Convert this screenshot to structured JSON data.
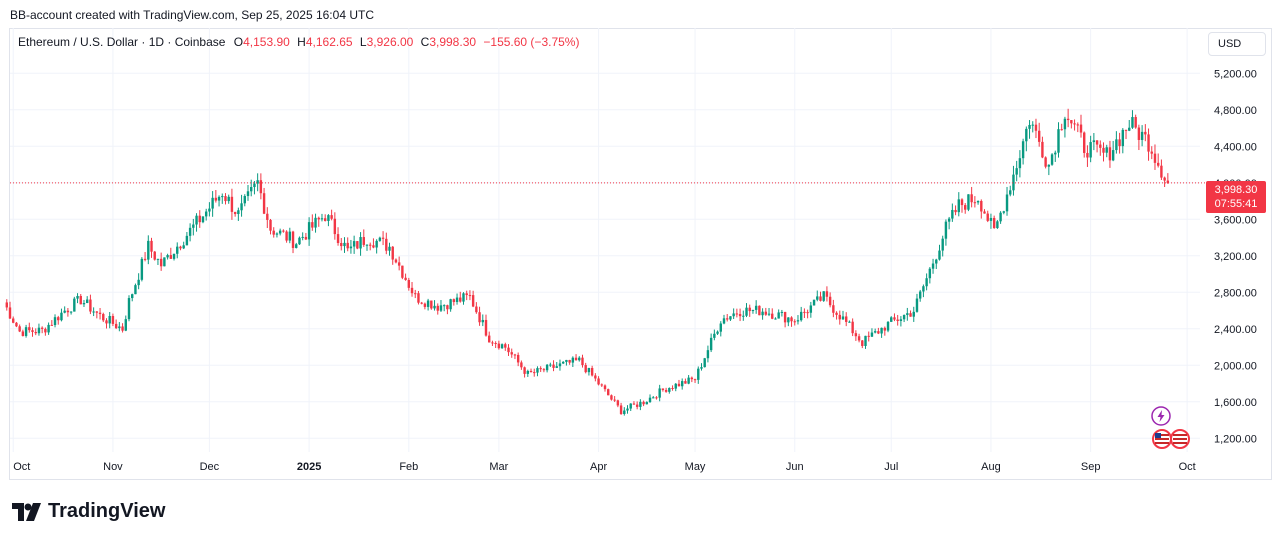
{
  "header": {
    "caption": "BB-account created with TradingView.com, Sep 25, 2025 16:04 UTC"
  },
  "legend": {
    "symbol": "Ethereum / U.S. Dollar · 1D · Coinbase",
    "o_label": "O",
    "o_value": "4,153.90",
    "h_label": "H",
    "h_value": "4,162.65",
    "l_label": "L",
    "l_value": "3,926.00",
    "c_label": "C",
    "c_value": "3,998.30",
    "change": "−155.60 (−3.75%)"
  },
  "currency_button": "USD",
  "last_price": {
    "price": "3,998.30",
    "countdown": "07:55:41"
  },
  "brand": "TradingView",
  "colors": {
    "up": "#089981",
    "down": "#f23645",
    "grid": "#f0f3fa",
    "text": "#131722"
  },
  "icons": [
    "lightning-icon",
    "us-flag-icon"
  ],
  "chart_data": {
    "type": "candlestick",
    "y_axis": {
      "position": "right",
      "ticks": [
        1200,
        1600,
        2000,
        2400,
        2800,
        3200,
        3600,
        4000,
        4400,
        4800,
        5200
      ],
      "tick_labels": [
        "1,200.00",
        "1,600.00",
        "2,000.00",
        "2,400.00",
        "2,800.00",
        "3,200.00",
        "3,600.00",
        "4,000.00",
        "4,400.00",
        "4,800.00",
        "5,200.00"
      ],
      "range": [
        1050,
        5400
      ]
    },
    "x_axis": {
      "range": [
        "2024-09-30",
        "2025-10-05"
      ],
      "ticks": [
        {
          "date": "2024-10-01",
          "label": "Oct"
        },
        {
          "date": "2024-11-01",
          "label": "Nov"
        },
        {
          "date": "2024-12-01",
          "label": "Dec"
        },
        {
          "date": "2025-01-01",
          "label": "2025"
        },
        {
          "date": "2025-02-01",
          "label": "Feb"
        },
        {
          "date": "2025-03-01",
          "label": "Mar"
        },
        {
          "date": "2025-04-01",
          "label": "Apr"
        },
        {
          "date": "2025-05-01",
          "label": "May"
        },
        {
          "date": "2025-06-01",
          "label": "Jun"
        },
        {
          "date": "2025-07-01",
          "label": "Jul"
        },
        {
          "date": "2025-08-01",
          "label": "Aug"
        },
        {
          "date": "2025-09-01",
          "label": "Sep"
        },
        {
          "date": "2025-10-01",
          "label": "Oct"
        }
      ]
    },
    "last_price_line": 3998.3,
    "grid": true,
    "closes": [
      {
        "date": "2024-09-28",
        "close": 2690
      },
      {
        "date": "2024-10-03",
        "close": 2370
      },
      {
        "date": "2024-10-10",
        "close": 2380
      },
      {
        "date": "2024-10-17",
        "close": 2600
      },
      {
        "date": "2024-10-22",
        "close": 2720
      },
      {
        "date": "2024-10-28",
        "close": 2540
      },
      {
        "date": "2024-11-04",
        "close": 2400
      },
      {
        "date": "2024-11-06",
        "close": 2700
      },
      {
        "date": "2024-11-12",
        "close": 3300
      },
      {
        "date": "2024-11-16",
        "close": 3100
      },
      {
        "date": "2024-11-22",
        "close": 3350
      },
      {
        "date": "2024-11-28",
        "close": 3600
      },
      {
        "date": "2024-12-05",
        "close": 3900
      },
      {
        "date": "2024-12-10",
        "close": 3650
      },
      {
        "date": "2024-12-16",
        "close": 4000
      },
      {
        "date": "2024-12-20",
        "close": 3500
      },
      {
        "date": "2024-12-28",
        "close": 3350
      },
      {
        "date": "2025-01-06",
        "close": 3650
      },
      {
        "date": "2025-01-13",
        "close": 3250
      },
      {
        "date": "2025-01-19",
        "close": 3400
      },
      {
        "date": "2025-01-26",
        "close": 3300
      },
      {
        "date": "2025-02-03",
        "close": 2750
      },
      {
        "date": "2025-02-10",
        "close": 2650
      },
      {
        "date": "2025-02-20",
        "close": 2750
      },
      {
        "date": "2025-02-26",
        "close": 2300
      },
      {
        "date": "2025-03-03",
        "close": 2200
      },
      {
        "date": "2025-03-10",
        "close": 1900
      },
      {
        "date": "2025-03-20",
        "close": 2000
      },
      {
        "date": "2025-03-26",
        "close": 2050
      },
      {
        "date": "2025-04-01",
        "close": 1800
      },
      {
        "date": "2025-04-08",
        "close": 1500
      },
      {
        "date": "2025-04-15",
        "close": 1600
      },
      {
        "date": "2025-04-22",
        "close": 1750
      },
      {
        "date": "2025-05-01",
        "close": 1850
      },
      {
        "date": "2025-05-09",
        "close": 2500
      },
      {
        "date": "2025-05-15",
        "close": 2600
      },
      {
        "date": "2025-05-22",
        "close": 2600
      },
      {
        "date": "2025-06-01",
        "close": 2500
      },
      {
        "date": "2025-06-10",
        "close": 2750
      },
      {
        "date": "2025-06-15",
        "close": 2550
      },
      {
        "date": "2025-06-22",
        "close": 2250
      },
      {
        "date": "2025-06-30",
        "close": 2450
      },
      {
        "date": "2025-07-08",
        "close": 2600
      },
      {
        "date": "2025-07-12",
        "close": 2950
      },
      {
        "date": "2025-07-18",
        "close": 3500
      },
      {
        "date": "2025-07-22",
        "close": 3750
      },
      {
        "date": "2025-07-28",
        "close": 3850
      },
      {
        "date": "2025-08-02",
        "close": 3450
      },
      {
        "date": "2025-08-09",
        "close": 4200
      },
      {
        "date": "2025-08-13",
        "close": 4700
      },
      {
        "date": "2025-08-19",
        "close": 4200
      },
      {
        "date": "2025-08-24",
        "close": 4800
      },
      {
        "date": "2025-08-30",
        "close": 4400
      },
      {
        "date": "2025-09-06",
        "close": 4300
      },
      {
        "date": "2025-09-13",
        "close": 4650
      },
      {
        "date": "2025-09-19",
        "close": 4450
      },
      {
        "date": "2025-09-25",
        "close": 3998
      }
    ]
  }
}
